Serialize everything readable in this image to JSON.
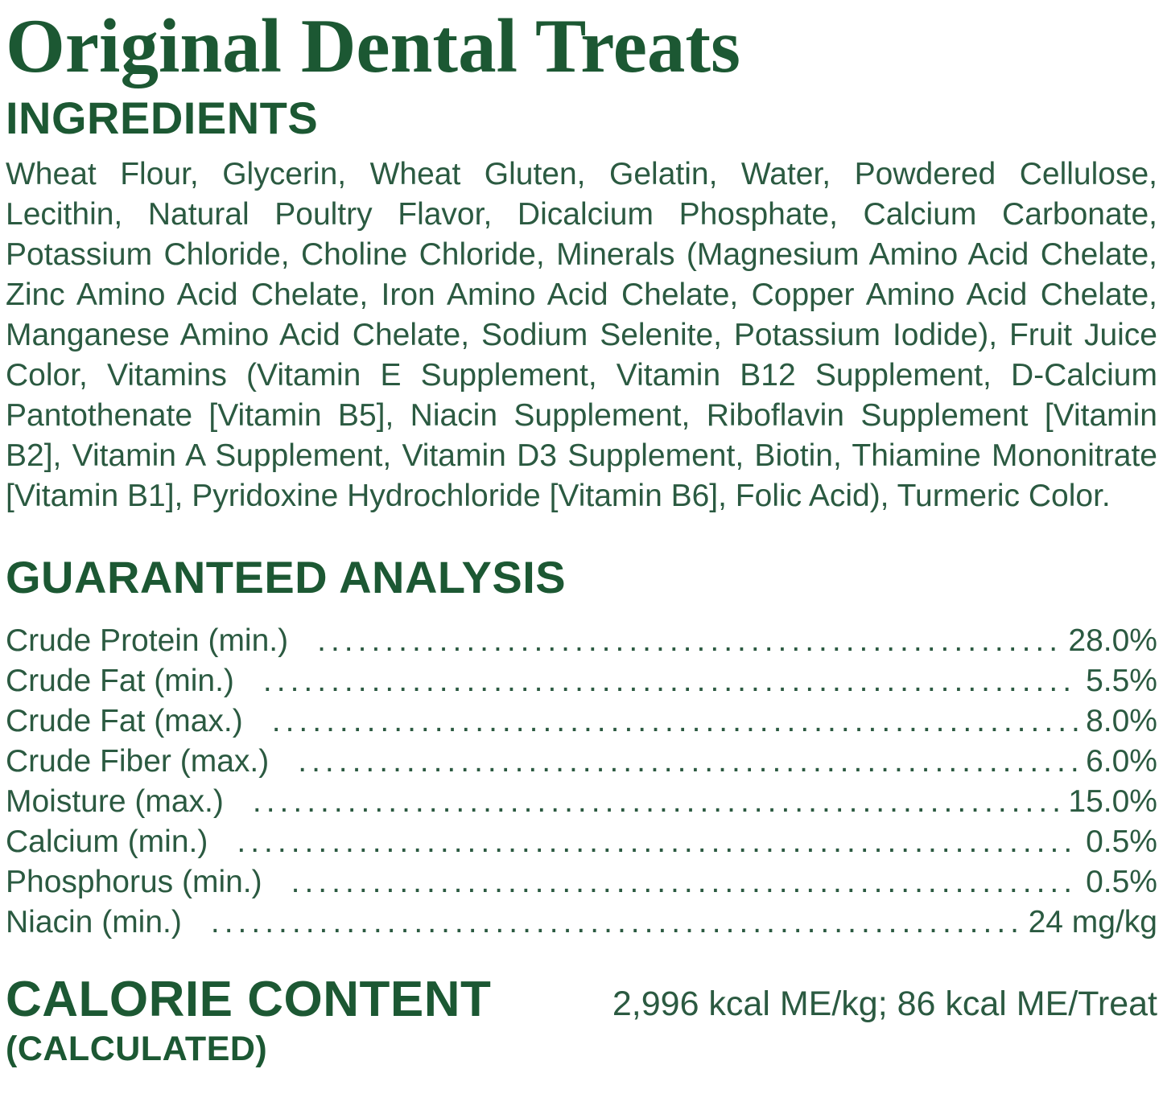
{
  "page": {
    "title": "Original Dental Treats"
  },
  "colors": {
    "heading_green": "#1c5833",
    "body_green": "#2b5a41",
    "background": "#ffffff"
  },
  "ingredients": {
    "heading": "INGREDIENTS",
    "text": "Wheat Flour, Glycerin, Wheat Gluten, Gelatin, Water, Powdered Cellulose, Lecithin, Natural Poultry Flavor, Dicalcium Phosphate, Calcium Carbonate, Potassium Chloride, Choline Chloride, Minerals (Magnesium Amino Acid Chelate, Zinc Amino Acid Chelate, Iron Amino Acid Chelate, Copper Amino Acid Chelate, Manganese Amino Acid Chelate, Sodium Selenite, Potassium Iodide), Fruit Juice Color, Vitamins (Vitamin E Supplement, Vitamin B12 Supplement, D-Calcium Pantothenate [Vitamin B5], Niacin Supplement, Riboflavin Supplement [Vitamin B2], Vitamin A Supplement, Vitamin D3 Supplement, Biotin, Thiamine Mononitrate [Vitamin B1], Pyridoxine Hydrochloride [Vitamin B6], Folic Acid), Turmeric Color."
  },
  "analysis": {
    "heading": "GUARANTEED ANALYSIS",
    "leader": "........................................................................................................................",
    "rows": [
      {
        "label": "Crude Protein (min.)",
        "value": "28.0%"
      },
      {
        "label": "Crude Fat (min.)",
        "value": "5.5%"
      },
      {
        "label": "Crude Fat (max.)",
        "value": "8.0%"
      },
      {
        "label": "Crude Fiber (max.)",
        "value": "6.0%"
      },
      {
        "label": "Moisture (max.)",
        "value": "15.0%"
      },
      {
        "label": "Calcium (min.)",
        "value": "0.5%"
      },
      {
        "label": "Phosphorus (min.)",
        "value": "0.5%"
      },
      {
        "label": "Niacin (min.)",
        "value": "24 mg/kg"
      }
    ]
  },
  "calorie": {
    "heading": "CALORIE CONTENT",
    "subheading": "(CALCULATED)",
    "value": "2,996 kcal ME/kg; 86 kcal ME/Treat"
  }
}
